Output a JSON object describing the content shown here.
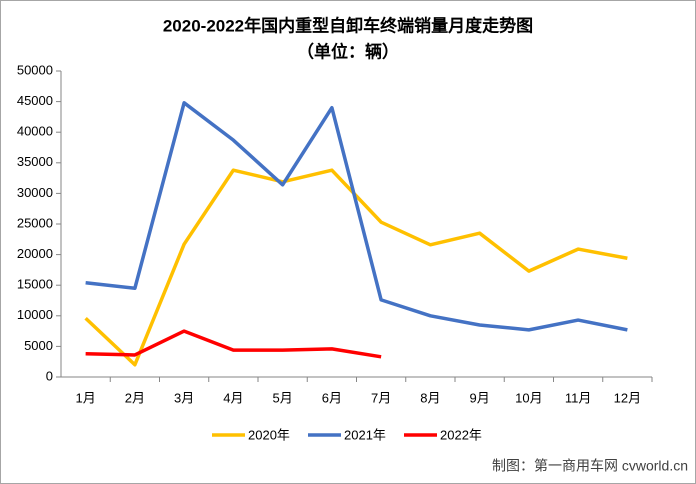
{
  "chart_data": {
    "type": "line",
    "title": "2020-2022年国内重型自卸车终端销量月度走势图",
    "subtitle": "（单位：辆）",
    "source": "制图：第一商用车网 cvworld.cn",
    "categories": [
      "1月",
      "2月",
      "3月",
      "4月",
      "5月",
      "6月",
      "7月",
      "8月",
      "9月",
      "10月",
      "11月",
      "12月"
    ],
    "series": [
      {
        "name": "2020年",
        "color": "#FFC000",
        "values": [
          9600,
          2000,
          21700,
          33800,
          31900,
          33800,
          25300,
          21600,
          23500,
          17300,
          20900,
          19400
        ]
      },
      {
        "name": "2021年",
        "color": "#4472C4",
        "values": [
          15400,
          14500,
          44800,
          38700,
          31400,
          44000,
          12600,
          10000,
          8500,
          7700,
          9300,
          7700
        ]
      },
      {
        "name": "2022年",
        "color": "#FF0000",
        "values": [
          3800,
          3600,
          7500,
          4400,
          4400,
          4600,
          3300,
          null,
          null,
          null,
          null,
          null
        ]
      }
    ],
    "ylim": [
      0,
      50000
    ],
    "yticks": [
      0,
      5000,
      10000,
      15000,
      20000,
      25000,
      30000,
      35000,
      40000,
      45000,
      50000
    ],
    "grid": false,
    "legend": "bottom"
  }
}
